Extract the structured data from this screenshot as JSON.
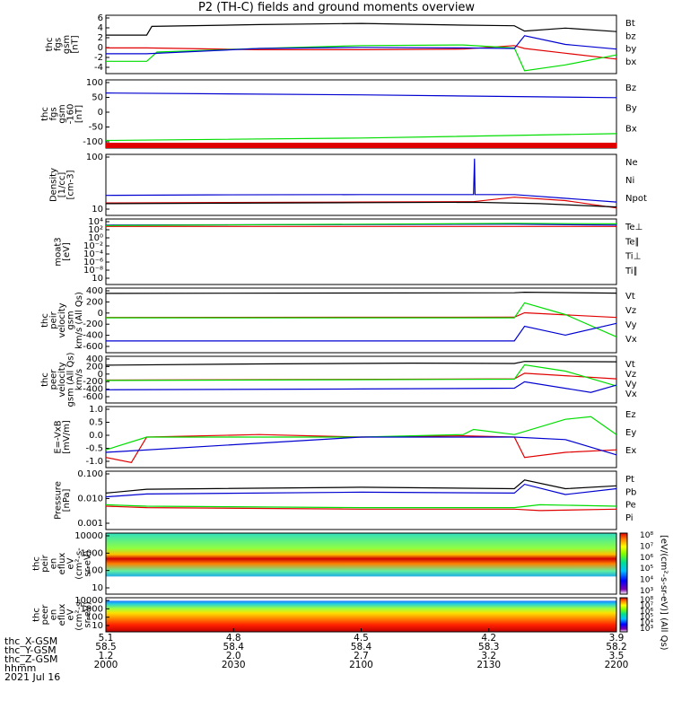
{
  "title": "P2 (TH-C) fields and ground moments overview",
  "colors": {
    "black": "#000000",
    "red": "#e00000",
    "green": "#00dd00",
    "blue": "#0000d0"
  },
  "chart_data": [
    {
      "type": "line",
      "ylabel": [
        "thc",
        "fgs",
        "gsm",
        "[nT]"
      ],
      "yticks": [
        "6",
        "4",
        "2",
        "0",
        "-2",
        "-4"
      ],
      "ylim": [
        -4,
        6
      ],
      "legend": [
        {
          "name": "Bt",
          "color": "#000000"
        },
        {
          "name": "bz",
          "color": "#e00000"
        },
        {
          "name": "by",
          "color": "#00dd00"
        },
        {
          "name": "bx",
          "color": "#0000d0"
        }
      ],
      "series": [
        {
          "name": "Bt",
          "color": "#000000",
          "x": [
            0,
            0.08,
            0.09,
            0.3,
            0.5,
            0.7,
            0.8,
            0.82,
            0.9,
            1
          ],
          "y": [
            2.6,
            2.6,
            4.1,
            4.4,
            4.6,
            4.3,
            4.2,
            3.3,
            3.8,
            3.2
          ]
        },
        {
          "name": "bz",
          "color": "#e00000",
          "x": [
            0,
            0.08,
            0.3,
            0.5,
            0.7,
            0.8,
            0.82,
            0.9,
            1
          ],
          "y": [
            0.4,
            0.4,
            0.1,
            0.1,
            0.2,
            0.8,
            0.3,
            -0.5,
            -1.5
          ]
        },
        {
          "name": "by",
          "color": "#00dd00",
          "x": [
            0,
            0.08,
            0.1,
            0.3,
            0.5,
            0.7,
            0.8,
            0.82,
            0.9,
            1
          ],
          "y": [
            -1.9,
            -1.9,
            -0.3,
            0.3,
            0.8,
            0.9,
            0.4,
            -3.5,
            -2.5,
            -0.8
          ]
        },
        {
          "name": "bx",
          "color": "#0000d0",
          "x": [
            0,
            0.08,
            0.3,
            0.5,
            0.7,
            0.8,
            0.82,
            0.9,
            1
          ],
          "y": [
            -0.6,
            -0.6,
            0.3,
            0.5,
            0.4,
            0.3,
            2.5,
            1.0,
            0.2
          ]
        }
      ]
    },
    {
      "type": "line",
      "ylabel": [
        "thc",
        "fgs",
        "gsm",
        "-160",
        "[nT]"
      ],
      "yticks": [
        "100",
        "50",
        "0",
        "-50",
        "-100"
      ],
      "ylim": [
        -150,
        100
      ],
      "legend": [
        {
          "name": "Bz",
          "color": "#e00000"
        },
        {
          "name": "By",
          "color": "#00dd00"
        },
        {
          "name": "Bx",
          "color": "#0000d0"
        }
      ],
      "series": [
        {
          "name": "Bz",
          "color": "#e00000",
          "x": [
            0,
            1
          ],
          "y": [
            -145,
            -145
          ]
        },
        {
          "name": "By",
          "color": "#00dd00",
          "x": [
            0,
            0.5,
            1
          ],
          "y": [
            -122,
            -113,
            -97
          ]
        },
        {
          "name": "Bx",
          "color": "#0000d0",
          "x": [
            0,
            0.5,
            1
          ],
          "y": [
            52,
            45,
            35
          ]
        }
      ]
    },
    {
      "type": "line",
      "ylabel": [
        "Density",
        "[1/cc]",
        "[cm-3]"
      ],
      "yticks": [
        "100",
        "10"
      ],
      "ylim": [
        1,
        300
      ],
      "log": true,
      "legend": [
        {
          "name": "Ne",
          "color": "#e00000"
        },
        {
          "name": "Ni",
          "color": "#000000"
        },
        {
          "name": "Npot",
          "color": "#0000d0"
        }
      ],
      "series": [
        {
          "name": "Npot",
          "color": "#0000d0",
          "x": [
            0,
            0.2,
            0.5,
            0.72,
            0.722,
            0.723,
            0.8,
            1
          ],
          "y": [
            6.5,
            6.8,
            7,
            7,
            200,
            7,
            7,
            3.5
          ]
        },
        {
          "name": "Ne",
          "color": "#e00000",
          "x": [
            0,
            0.5,
            0.72,
            0.8,
            0.9,
            1
          ],
          "y": [
            3.2,
            3.5,
            3.6,
            5.5,
            4.0,
            2.0
          ]
        },
        {
          "name": "Ni",
          "color": "#000000",
          "x": [
            0,
            0.5,
            0.72,
            0.85,
            1
          ],
          "y": [
            3.0,
            3.3,
            3.4,
            3.0,
            2.2
          ]
        }
      ]
    },
    {
      "type": "line",
      "ylabel": [
        "moat3",
        "[eV]"
      ],
      "yticks": [
        "10⁴",
        "10²",
        "10⁰",
        "10⁻²",
        "10⁻⁴",
        "10⁻⁶",
        "10⁻⁸",
        "10"
      ],
      "ylim": [
        -10,
        5
      ],
      "legend": [
        {
          "name": "Te⊥",
          "color": "#e00000"
        },
        {
          "name": "Te∥",
          "color": "#000000"
        },
        {
          "name": "Ti⊥",
          "color": "#0000d0"
        },
        {
          "name": "Ti∥",
          "color": "#00dd00"
        }
      ],
      "series": [
        {
          "name": "Te⊥",
          "color": "#e00000",
          "x": [
            0,
            1
          ],
          "y": [
            3.3,
            3.3
          ]
        },
        {
          "name": "Ti⊥",
          "color": "#0000d0",
          "x": [
            0,
            0.8,
            1
          ],
          "y": [
            3.6,
            3.8,
            3.6
          ]
        },
        {
          "name": "Ti∥",
          "color": "#00dd00",
          "x": [
            0,
            0.8,
            1
          ],
          "y": [
            3.5,
            4.0,
            3.9
          ]
        }
      ]
    },
    {
      "type": "line",
      "ylabel": [
        "thc",
        "peir",
        "velocity",
        "gsm",
        "km/s (All Qs)"
      ],
      "yticks": [
        "400",
        "200",
        "0",
        "-200",
        "-400",
        "-600"
      ],
      "ylim": [
        -600,
        500
      ],
      "legend": [
        {
          "name": "Vt",
          "color": "#000000"
        },
        {
          "name": "Vz",
          "color": "#e00000"
        },
        {
          "name": "Vy",
          "color": "#00dd00"
        },
        {
          "name": "Vx",
          "color": "#0000d0"
        }
      ],
      "series": [
        {
          "name": "Vt",
          "color": "#000000",
          "x": [
            0,
            0.8,
            0.82,
            1
          ],
          "y": [
            410,
            420,
            430,
            415
          ]
        },
        {
          "name": "Vz",
          "color": "#e00000",
          "x": [
            0,
            0.8,
            0.82,
            1
          ],
          "y": [
            0,
            5,
            80,
            0
          ]
        },
        {
          "name": "Vy",
          "color": "#00dd00",
          "x": [
            0,
            0.8,
            0.82,
            0.9,
            1
          ],
          "y": [
            -5,
            -5,
            250,
            50,
            -330
          ]
        },
        {
          "name": "Vx",
          "color": "#0000d0",
          "x": [
            0,
            0.8,
            0.82,
            0.9,
            1
          ],
          "y": [
            -400,
            -400,
            -150,
            -300,
            -100
          ]
        }
      ]
    },
    {
      "type": "line",
      "ylabel": [
        "thc",
        "peer",
        "velocity",
        "gsm (All Qs)",
        "km/s"
      ],
      "yticks": [
        "400",
        "200",
        "0",
        "-200",
        "-400",
        "-600"
      ],
      "ylim": [
        -600,
        500
      ],
      "legend": [
        {
          "name": "Vt",
          "color": "#000000"
        },
        {
          "name": "Vz",
          "color": "#e00000"
        },
        {
          "name": "Vy",
          "color": "#00dd00"
        },
        {
          "name": "Vx",
          "color": "#0000d0"
        }
      ],
      "series": [
        {
          "name": "Vt",
          "color": "#000000",
          "x": [
            0,
            0.3,
            0.6,
            0.8,
            0.82,
            1
          ],
          "y": [
            290,
            320,
            340,
            330,
            380,
            370
          ]
        },
        {
          "name": "Vz",
          "color": "#e00000",
          "x": [
            0,
            0.8,
            0.82,
            1
          ],
          "y": [
            -60,
            -30,
            100,
            -30
          ]
        },
        {
          "name": "Vy",
          "color": "#00dd00",
          "x": [
            0,
            0.8,
            0.82,
            0.9,
            1
          ],
          "y": [
            -70,
            -40,
            300,
            150,
            -200
          ]
        },
        {
          "name": "Vx",
          "color": "#0000d0",
          "x": [
            0,
            0.5,
            0.8,
            0.82,
            0.95,
            1
          ],
          "y": [
            -290,
            -270,
            -250,
            -100,
            -350,
            -180
          ]
        }
      ]
    },
    {
      "type": "line",
      "ylabel": [
        "E=-VxB",
        "[mV/m]"
      ],
      "yticks": [
        "1.0",
        "0.5",
        "0.0",
        "-0.5",
        "-1.0"
      ],
      "ylim": [
        -1.2,
        1.2
      ],
      "legend": [
        {
          "name": "Ez",
          "color": "#e00000"
        },
        {
          "name": "Ey",
          "color": "#00dd00"
        },
        {
          "name": "Ex",
          "color": "#0000d0"
        }
      ],
      "series": [
        {
          "name": "Ez",
          "color": "#e00000",
          "x": [
            0,
            0.05,
            0.08,
            0.3,
            0.5,
            0.7,
            0.8,
            0.82,
            0.9,
            1
          ],
          "y": [
            -0.8,
            -1.0,
            0.0,
            0.1,
            0.0,
            0.05,
            0.0,
            -0.8,
            -0.6,
            -0.5
          ]
        },
        {
          "name": "Ey",
          "color": "#00dd00",
          "x": [
            0,
            0.08,
            0.5,
            0.7,
            0.72,
            0.8,
            0.9,
            0.95,
            1
          ],
          "y": [
            -0.5,
            0.0,
            0.0,
            0.1,
            0.3,
            0.1,
            0.7,
            0.8,
            0.1
          ]
        },
        {
          "name": "Ex",
          "color": "#0000d0",
          "x": [
            0,
            0.5,
            0.8,
            0.9,
            1
          ],
          "y": [
            -0.6,
            0.0,
            0.0,
            -0.1,
            -0.7
          ]
        }
      ]
    },
    {
      "type": "line",
      "ylabel": [
        "Pressure",
        "[nPa]"
      ],
      "yticks": [
        "0.100",
        "0.010",
        "0.001"
      ],
      "ylim": [
        -3,
        -1
      ],
      "log": true,
      "legend": [
        {
          "name": "Pt",
          "color": "#000000"
        },
        {
          "name": "Pb",
          "color": "#e00000"
        },
        {
          "name": "Pe",
          "color": "#00dd00"
        },
        {
          "name": "Pi",
          "color": "#0000d0"
        }
      ],
      "series": [
        {
          "name": "Pt",
          "color": "#000000",
          "x": [
            0,
            0.08,
            0.5,
            0.8,
            0.82,
            0.9,
            1
          ],
          "y": [
            -1.75,
            -1.62,
            -1.55,
            -1.6,
            -1.3,
            -1.6,
            -1.5
          ]
        },
        {
          "name": "Pi",
          "color": "#0000d0",
          "x": [
            0,
            0.08,
            0.5,
            0.8,
            0.82,
            0.9,
            1
          ],
          "y": [
            -1.88,
            -1.78,
            -1.72,
            -1.75,
            -1.45,
            -1.8,
            -1.6
          ]
        },
        {
          "name": "Pb",
          "color": "#e00000",
          "x": [
            0,
            0.08,
            0.5,
            0.8,
            0.85,
            1
          ],
          "y": [
            -2.2,
            -2.25,
            -2.3,
            -2.3,
            -2.35,
            -2.3
          ]
        },
        {
          "name": "Pe",
          "color": "#00dd00",
          "x": [
            0,
            0.08,
            0.5,
            0.8,
            0.85,
            1
          ],
          "y": [
            -2.15,
            -2.2,
            -2.25,
            -2.25,
            -2.15,
            -2.2
          ]
        }
      ]
    },
    {
      "type": "heatmap",
      "ylabel": [
        "thc",
        "peir",
        "en",
        "eflux",
        "eV",
        "(cm²-s-",
        "sr-eV)"
      ],
      "yticks": [
        "10000",
        "1000",
        "100",
        "10"
      ]
    },
    {
      "type": "heatmap",
      "ylabel": [
        "thc",
        "peer",
        "en",
        "eflux",
        "eV",
        "(cm²-s-",
        "sr-eV)"
      ],
      "yticks": [
        "10000",
        "1000",
        "100",
        "10"
      ]
    }
  ],
  "colorbars": [
    {
      "ticks": [
        "10⁸",
        "10⁷",
        "10⁶",
        "10⁵",
        "10⁴",
        "10³"
      ],
      "label": "[eV/(cm²-s-sr-eV)] (All Qs)"
    },
    {
      "ticks": [
        "10⁸",
        "10⁷",
        "10⁶",
        "10⁵",
        "10⁴",
        "10³"
      ]
    }
  ],
  "footer": {
    "row_labels": [
      "thc_X-GSM",
      "thc_Y-GSM",
      "thc_Z-GSM",
      "hhmm",
      "2021 Jul 16"
    ],
    "columns": [
      [
        "5.1",
        "58.5",
        "1.2",
        "2000"
      ],
      [
        "4.8",
        "58.4",
        "2.0",
        "2030"
      ],
      [
        "4.5",
        "58.4",
        "2.7",
        "2100"
      ],
      [
        "4.2",
        "58.3",
        "3.2",
        "2130"
      ],
      [
        "3.9",
        "58.2",
        "3.5",
        "2200"
      ]
    ]
  }
}
